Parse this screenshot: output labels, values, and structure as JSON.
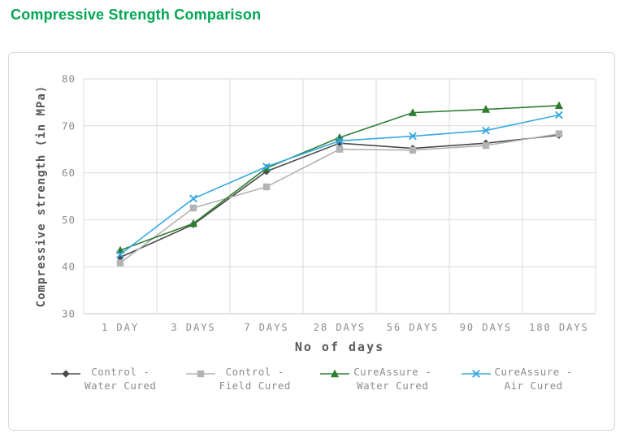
{
  "page": {
    "title": "Compressive Strength Comparison",
    "title_color": "#00a651"
  },
  "colors": {
    "grid": "#d9d9d9",
    "axis_line": "#c6c6c6",
    "tick_text": "#8c8c8c",
    "axis_title": "#595959",
    "card_border": "#d9d9d9"
  },
  "chart_data": {
    "type": "line",
    "title": "Compressive Strength Comparison",
    "categories": [
      "1 DAY",
      "3 DAYS",
      "7 DAYS",
      "28 DAYS",
      "56 DAYS",
      "90 DAYS",
      "180 DAYS"
    ],
    "xlabel": "No of days",
    "ylabel": "Compressive strength (in MPa)",
    "ylim": [
      30,
      80
    ],
    "ytick_step": 10,
    "grid": true,
    "legend_position": "bottom",
    "series": [
      {
        "name": "Control - Water Cured",
        "legend_lines": [
          "Control -",
          "Water Cured"
        ],
        "color": "#4a4a4a",
        "marker": "diamond",
        "values": [
          42,
          49,
          60.3,
          66.3,
          65.2,
          66.3,
          68
        ]
      },
      {
        "name": "Control - Field Cured",
        "legend_lines": [
          "Control -",
          "Field Cured"
        ],
        "color": "#b3b3b3",
        "marker": "square",
        "values": [
          40.8,
          52.5,
          57,
          65,
          64.8,
          65.8,
          68.3
        ]
      },
      {
        "name": "CureAssure - Water Cured",
        "legend_lines": [
          "CureAssure -",
          "Water Cured"
        ],
        "color": "#2e7d32",
        "marker": "triangle",
        "values": [
          43.5,
          49.2,
          61,
          67.5,
          72.8,
          73.5,
          74.3
        ]
      },
      {
        "name": "CureAssure - Air Cured",
        "legend_lines": [
          "CureAssure -",
          "Air Cured"
        ],
        "color": "#36a9e1",
        "marker": "x",
        "values": [
          42.6,
          54.5,
          61.3,
          66.8,
          67.8,
          69,
          72.3
        ]
      }
    ]
  }
}
